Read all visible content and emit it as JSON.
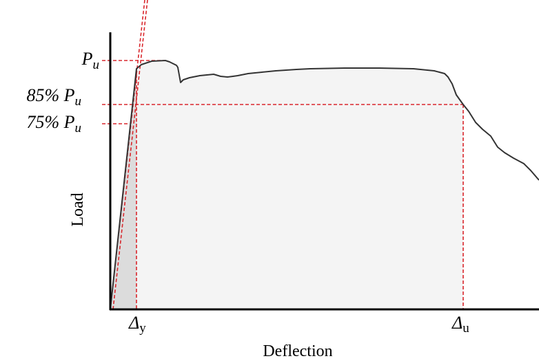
{
  "diagram": {
    "axes": {
      "x_label": "Deflection",
      "y_label": "Load"
    },
    "load_levels": [
      {
        "id": "pu",
        "prefix": "",
        "symbol": "P",
        "subscript": "u"
      },
      {
        "id": "p85",
        "prefix": "85% ",
        "symbol": "P",
        "subscript": "u"
      },
      {
        "id": "p75",
        "prefix": "75% ",
        "symbol": "P",
        "subscript": "u"
      }
    ],
    "deflection_marks": [
      {
        "id": "dy",
        "symbol": "Δ",
        "subscript": "y"
      },
      {
        "id": "du",
        "symbol": "Δ",
        "subscript": "u"
      }
    ],
    "colors": {
      "curve": "#333333",
      "axis": "#000000",
      "dashed": "#d9252b",
      "shade_elastic": "#dcdcdc",
      "shade_total": "#f4f4f4"
    }
  }
}
